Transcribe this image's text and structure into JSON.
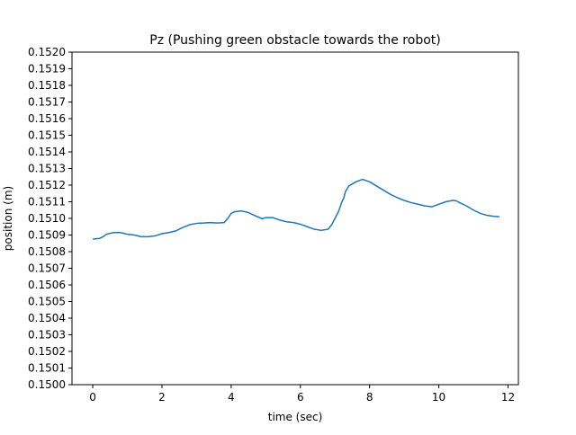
{
  "chart_data": {
    "type": "line",
    "title": "Pz (Pushing green obstacle towards the robot)",
    "xlabel": "time (sec)",
    "ylabel": "position (m)",
    "xlim": [
      -0.6,
      12.3
    ],
    "ylim": [
      0.15,
      0.152
    ],
    "x_ticks": [
      0,
      2,
      4,
      6,
      8,
      10,
      12
    ],
    "x_tick_labels": [
      "0",
      "2",
      "4",
      "6",
      "8",
      "10",
      "12"
    ],
    "y_ticks": [
      0.15,
      0.1501,
      0.1502,
      0.1503,
      0.1504,
      0.1505,
      0.1506,
      0.1507,
      0.1508,
      0.1509,
      0.151,
      0.1511,
      0.1512,
      0.1513,
      0.1514,
      0.1515,
      0.1516,
      0.1517,
      0.1518,
      0.1519,
      0.152
    ],
    "y_tick_labels": [
      "0.1500",
      "0.1501",
      "0.1502",
      "0.1503",
      "0.1504",
      "0.1505",
      "0.1506",
      "0.1507",
      "0.1508",
      "0.1509",
      "0.1510",
      "0.1511",
      "0.1512",
      "0.1513",
      "0.1514",
      "0.1515",
      "0.1516",
      "0.1517",
      "0.1518",
      "0.1519",
      "0.1520"
    ],
    "grid": false,
    "series": [
      {
        "color": "#1f77b4",
        "x": [
          0.0,
          0.2,
          0.3,
          0.4,
          0.6,
          0.8,
          1.0,
          1.2,
          1.4,
          1.6,
          1.8,
          2.0,
          2.2,
          2.4,
          2.6,
          2.8,
          3.0,
          3.2,
          3.4,
          3.6,
          3.8,
          3.9,
          4.0,
          4.1,
          4.3,
          4.5,
          4.7,
          4.9,
          5.0,
          5.2,
          5.4,
          5.6,
          5.8,
          6.0,
          6.2,
          6.4,
          6.6,
          6.8,
          6.9,
          7.0,
          7.1,
          7.2,
          7.25,
          7.3,
          7.4,
          7.6,
          7.8,
          8.0,
          8.2,
          8.4,
          8.6,
          8.8,
          9.0,
          9.2,
          9.4,
          9.6,
          9.8,
          10.0,
          10.2,
          10.4,
          10.5,
          10.6,
          10.8,
          11.0,
          11.2,
          11.4,
          11.6,
          11.75
        ],
        "y": [
          0.150875,
          0.15088,
          0.15089,
          0.150905,
          0.150915,
          0.150915,
          0.150905,
          0.1509,
          0.15089,
          0.15089,
          0.150895,
          0.150908,
          0.150915,
          0.150925,
          0.150945,
          0.150962,
          0.15097,
          0.150972,
          0.150975,
          0.150972,
          0.150975,
          0.151,
          0.15103,
          0.15104,
          0.151045,
          0.151035,
          0.151015,
          0.150998,
          0.151005,
          0.151005,
          0.15099,
          0.15098,
          0.150975,
          0.150965,
          0.15095,
          0.150935,
          0.150928,
          0.150935,
          0.15096,
          0.151,
          0.15104,
          0.1511,
          0.15112,
          0.15116,
          0.151195,
          0.15122,
          0.151235,
          0.15122,
          0.151195,
          0.15117,
          0.151145,
          0.151125,
          0.151108,
          0.151095,
          0.151085,
          0.151075,
          0.15107,
          0.151085,
          0.1511,
          0.151108,
          0.151106,
          0.151095,
          0.151075,
          0.15105,
          0.15103,
          0.151018,
          0.151012,
          0.15101
        ]
      }
    ]
  }
}
